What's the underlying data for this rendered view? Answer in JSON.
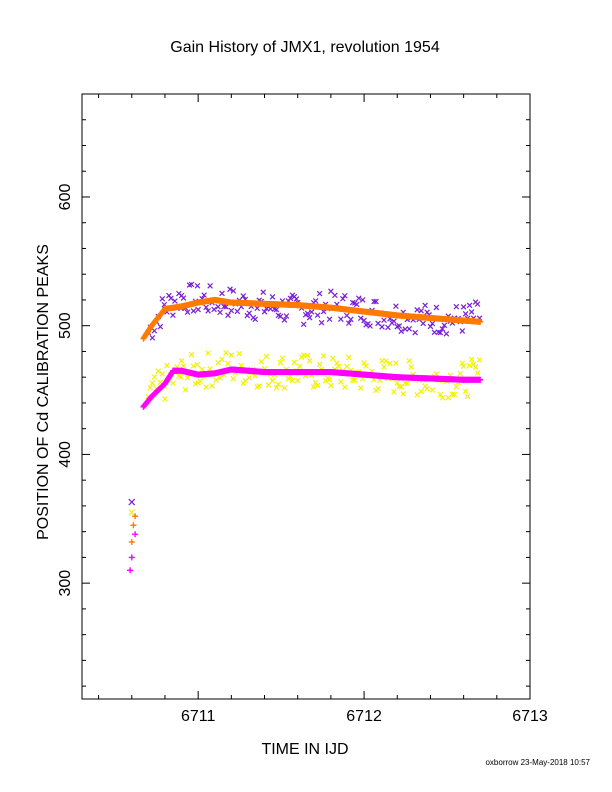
{
  "chart_data": {
    "type": "scatter",
    "title": "Gain History of JMX1, revolution 1954",
    "xlabel": "TIME IN IJD",
    "ylabel": "POSITION OF Cd CALIBRATION PEAKS",
    "xlim": [
      6710.3,
      6713.0
    ],
    "ylim": [
      210,
      680
    ],
    "xticks": [
      6711,
      6712,
      6713
    ],
    "yticks": [
      300,
      400,
      500,
      600
    ],
    "grid": false,
    "colors": {
      "purple": "#7a1fd6",
      "orange": "#ff7a00",
      "yellow": "#f2f200",
      "magenta": "#ff00ff"
    },
    "series": [
      {
        "marker": "x",
        "color": "purple",
        "noise": 12,
        "values": [
          [
            6710.6,
            363
          ],
          [
            6710.7,
            495
          ],
          [
            6710.8,
            515
          ],
          [
            6710.9,
            522
          ],
          [
            6711.0,
            520
          ],
          [
            6711.2,
            518
          ],
          [
            6711.4,
            515
          ],
          [
            6711.6,
            512
          ],
          [
            6711.8,
            515
          ],
          [
            6712.0,
            512
          ],
          [
            6712.2,
            508
          ],
          [
            6712.4,
            505
          ],
          [
            6712.6,
            505
          ],
          [
            6712.7,
            508
          ]
        ]
      },
      {
        "marker": "x",
        "color": "yellow",
        "noise": 14,
        "values": [
          [
            6710.6,
            355
          ],
          [
            6710.7,
            445
          ],
          [
            6710.8,
            455
          ],
          [
            6710.9,
            462
          ],
          [
            6711.0,
            465
          ],
          [
            6711.2,
            468
          ],
          [
            6711.4,
            465
          ],
          [
            6711.6,
            465
          ],
          [
            6711.8,
            463
          ],
          [
            6712.0,
            462
          ],
          [
            6712.2,
            460
          ],
          [
            6712.4,
            458
          ],
          [
            6712.6,
            458
          ],
          [
            6712.7,
            462
          ]
        ]
      },
      {
        "marker": "+",
        "color": "orange",
        "values": [
          [
            6710.6,
            332
          ],
          [
            6710.61,
            345
          ],
          [
            6710.62,
            352
          ],
          [
            6710.67,
            490
          ],
          [
            6710.72,
            500
          ],
          [
            6710.8,
            513
          ],
          [
            6710.9,
            515
          ],
          [
            6711.0,
            518
          ],
          [
            6711.1,
            520
          ],
          [
            6711.2,
            518
          ],
          [
            6711.4,
            517
          ],
          [
            6711.6,
            516
          ],
          [
            6711.8,
            514
          ],
          [
            6712.0,
            511
          ],
          [
            6712.2,
            508
          ],
          [
            6712.4,
            506
          ],
          [
            6712.6,
            504
          ],
          [
            6712.7,
            503
          ]
        ]
      },
      {
        "marker": "+",
        "color": "magenta",
        "values": [
          [
            6710.59,
            310
          ],
          [
            6710.6,
            320
          ],
          [
            6710.62,
            338
          ],
          [
            6710.67,
            437
          ],
          [
            6710.72,
            445
          ],
          [
            6710.8,
            455
          ],
          [
            6710.85,
            465
          ],
          [
            6710.9,
            465
          ],
          [
            6711.0,
            462
          ],
          [
            6711.1,
            463
          ],
          [
            6711.2,
            466
          ],
          [
            6711.4,
            464
          ],
          [
            6711.6,
            464
          ],
          [
            6711.8,
            464
          ],
          [
            6712.0,
            462
          ],
          [
            6712.2,
            460
          ],
          [
            6712.4,
            459
          ],
          [
            6712.6,
            458
          ],
          [
            6712.7,
            458
          ]
        ]
      }
    ]
  },
  "footer": "oxborrow 23-May-2018 10:57"
}
